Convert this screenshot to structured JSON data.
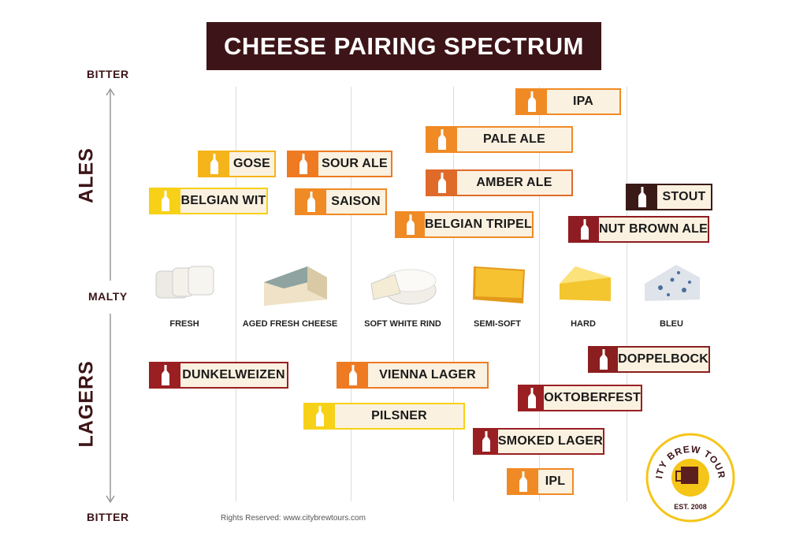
{
  "title": "CHEESE PAIRING SPECTRUM",
  "axis": {
    "top": "BITTER",
    "middle": "MALTY",
    "bottom": "BITTER"
  },
  "groups": {
    "ales": "ALES",
    "lagers": "LAGERS"
  },
  "cheeses": [
    {
      "label": "FRESH",
      "icon": "fresh-cheese-icon"
    },
    {
      "label": "AGED FRESH CHEESE",
      "icon": "aged-fresh-cheese-icon"
    },
    {
      "label": "SOFT WHITE RIND",
      "icon": "soft-white-rind-cheese-icon"
    },
    {
      "label": "SEMI-SOFT",
      "icon": "semi-soft-cheese-icon"
    },
    {
      "label": "HARD",
      "icon": "hard-cheese-icon"
    },
    {
      "label": "BLEU",
      "icon": "bleu-cheese-icon"
    }
  ],
  "beers": [
    {
      "label": "IPA",
      "color": "#f08a24"
    },
    {
      "label": "PALE ALE",
      "color": "#f08a24"
    },
    {
      "label": "GOSE",
      "color": "#f5b41a"
    },
    {
      "label": "SOUR ALE",
      "color": "#ee7a22"
    },
    {
      "label": "AMBER ALE",
      "color": "#e06a2a"
    },
    {
      "label": "BELGIAN WIT",
      "color": "#f7d117"
    },
    {
      "label": "SAISON",
      "color": "#f08a24"
    },
    {
      "label": "STOUT",
      "color": "#3a1a17"
    },
    {
      "label": "BELGIAN TRIPEL",
      "color": "#f08a24"
    },
    {
      "label": "NUT BROWN ALE",
      "color": "#8e1c22"
    },
    {
      "label": "DOPPELBOCK",
      "color": "#8b1e1e"
    },
    {
      "label": "DUNKELWEIZEN",
      "color": "#9a1f22"
    },
    {
      "label": "VIENNA LAGER",
      "color": "#ee7a22"
    },
    {
      "label": "OKTOBERFEST",
      "color": "#9a1f22"
    },
    {
      "label": "PILSNER",
      "color": "#f7d117"
    },
    {
      "label": "SMOKED LAGER",
      "color": "#9a1f22"
    },
    {
      "label": "IPL",
      "color": "#f08a24"
    }
  ],
  "logo": {
    "text": "CITY BREW TOURS",
    "est": "EST. 2008",
    "color": "#f5c518"
  },
  "footer": "Rights Reserved: www.citybrewtours.com",
  "colors": {
    "title_bg": "#3d1417",
    "badge_bg": "#fbf1e0"
  }
}
